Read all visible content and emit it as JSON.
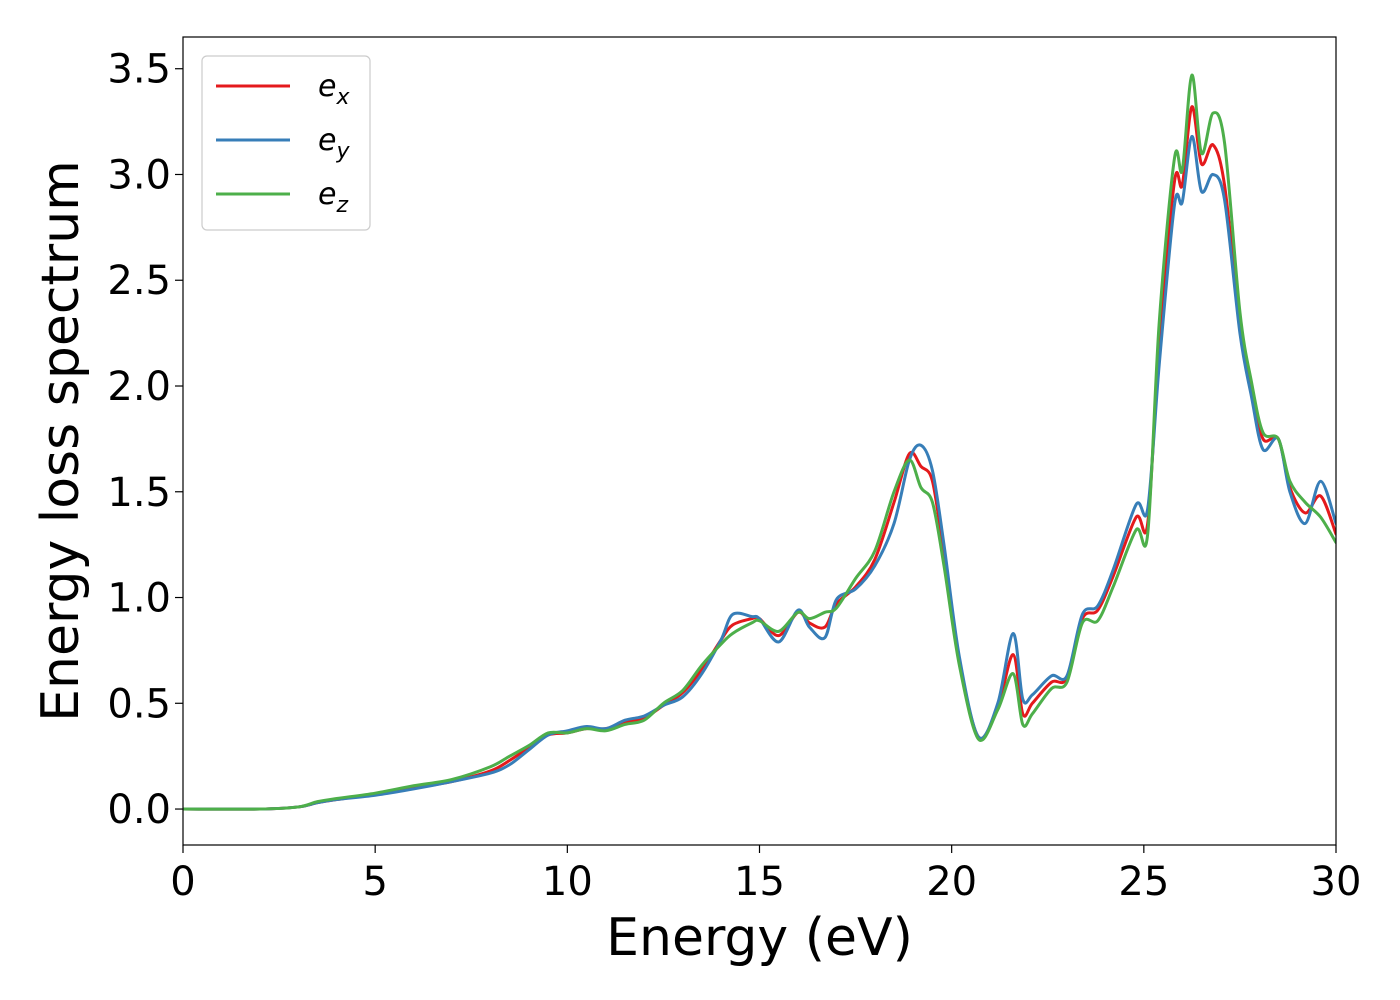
{
  "chart_data": {
    "type": "line",
    "title": "",
    "xlabel": "Energy (eV)",
    "ylabel": "Energy loss spectrum",
    "xlim": [
      0,
      30
    ],
    "ylim": [
      -0.17,
      3.65
    ],
    "xticks": [
      0,
      5,
      10,
      15,
      20,
      25,
      30
    ],
    "yticks": [
      0.0,
      0.5,
      1.0,
      1.5,
      2.0,
      2.5,
      3.0,
      3.5
    ],
    "xtick_labels": [
      "0",
      "5",
      "10",
      "15",
      "20",
      "25",
      "30"
    ],
    "ytick_labels": [
      "0.0",
      "0.5",
      "1.0",
      "1.5",
      "2.0",
      "2.5",
      "3.0",
      "3.5"
    ],
    "grid": false,
    "legend_position": "top-left",
    "series": [
      {
        "name": "e_x",
        "legend_base": "e",
        "legend_sub": "x",
        "color": "#e41a1c",
        "x": [
          0,
          2,
          3,
          3.5,
          4,
          5,
          6,
          7,
          8,
          8.5,
          9,
          9.5,
          10,
          10.5,
          11,
          11.5,
          12,
          12.5,
          13,
          13.5,
          14,
          14.3,
          14.8,
          15,
          15.5,
          16,
          16.3,
          16.7,
          17,
          17.5,
          18,
          18.5,
          18.9,
          19.2,
          19.5,
          19.8,
          20.2,
          20.7,
          21.2,
          21.6,
          21.85,
          22.1,
          22.6,
          23,
          23.4,
          23.8,
          24.2,
          24.8,
          25.1,
          25.4,
          25.8,
          26.0,
          26.25,
          26.5,
          26.8,
          27.1,
          27.5,
          27.8,
          28.1,
          28.5,
          28.8,
          29.2,
          29.6,
          30
        ],
        "values": [
          0.0,
          0.0,
          0.01,
          0.03,
          0.045,
          0.07,
          0.1,
          0.13,
          0.18,
          0.23,
          0.29,
          0.35,
          0.36,
          0.38,
          0.38,
          0.41,
          0.43,
          0.49,
          0.55,
          0.66,
          0.8,
          0.87,
          0.9,
          0.9,
          0.82,
          0.93,
          0.88,
          0.86,
          0.97,
          1.05,
          1.18,
          1.45,
          1.68,
          1.62,
          1.55,
          1.2,
          0.7,
          0.34,
          0.48,
          0.73,
          0.45,
          0.5,
          0.6,
          0.62,
          0.9,
          0.94,
          1.1,
          1.38,
          1.35,
          2.2,
          2.97,
          2.95,
          3.32,
          3.05,
          3.14,
          2.95,
          2.3,
          1.99,
          1.75,
          1.75,
          1.52,
          1.4,
          1.48,
          1.3
        ]
      },
      {
        "name": "e_y",
        "legend_base": "e",
        "legend_sub": "y",
        "color": "#377eb8",
        "x": [
          0,
          2,
          3,
          3.5,
          4,
          5,
          6,
          7,
          8,
          8.5,
          9,
          9.5,
          10,
          10.5,
          11,
          11.5,
          12,
          12.5,
          13,
          13.5,
          14,
          14.3,
          14.8,
          15,
          15.5,
          16,
          16.3,
          16.7,
          17,
          17.5,
          18,
          18.5,
          18.9,
          19.2,
          19.5,
          19.8,
          20.2,
          20.7,
          21.2,
          21.6,
          21.85,
          22.1,
          22.6,
          23,
          23.4,
          23.8,
          24.2,
          24.8,
          25.1,
          25.4,
          25.8,
          26.0,
          26.25,
          26.5,
          26.8,
          27.1,
          27.5,
          27.8,
          28.1,
          28.5,
          28.8,
          29.2,
          29.6,
          30
        ],
        "values": [
          0.0,
          0.0,
          0.01,
          0.03,
          0.045,
          0.065,
          0.095,
          0.13,
          0.17,
          0.21,
          0.28,
          0.35,
          0.37,
          0.39,
          0.38,
          0.42,
          0.44,
          0.49,
          0.53,
          0.64,
          0.8,
          0.92,
          0.91,
          0.9,
          0.79,
          0.94,
          0.86,
          0.81,
          0.99,
          1.04,
          1.15,
          1.35,
          1.65,
          1.72,
          1.6,
          1.25,
          0.72,
          0.34,
          0.5,
          0.83,
          0.52,
          0.54,
          0.63,
          0.63,
          0.92,
          0.96,
          1.13,
          1.44,
          1.42,
          2.1,
          2.86,
          2.87,
          3.18,
          2.92,
          3.0,
          2.88,
          2.25,
          1.95,
          1.7,
          1.75,
          1.5,
          1.35,
          1.55,
          1.35
        ]
      },
      {
        "name": "e_z",
        "legend_base": "e",
        "legend_sub": "z",
        "color": "#4daf4a",
        "x": [
          0,
          2,
          3,
          3.5,
          4,
          5,
          6,
          7,
          8,
          8.5,
          9,
          9.5,
          10,
          10.5,
          11,
          11.5,
          12,
          12.5,
          13,
          13.5,
          14,
          14.3,
          14.8,
          15,
          15.5,
          16,
          16.3,
          16.7,
          17,
          17.5,
          18,
          18.5,
          18.9,
          19.2,
          19.5,
          19.8,
          20.2,
          20.7,
          21.2,
          21.6,
          21.85,
          22.1,
          22.6,
          23,
          23.4,
          23.8,
          24.2,
          24.8,
          25.1,
          25.4,
          25.8,
          26.0,
          26.25,
          26.5,
          26.8,
          27.1,
          27.5,
          27.8,
          28.1,
          28.5,
          28.8,
          29.2,
          29.6,
          30
        ],
        "values": [
          0.0,
          0.0,
          0.01,
          0.035,
          0.05,
          0.075,
          0.11,
          0.14,
          0.2,
          0.25,
          0.3,
          0.36,
          0.36,
          0.38,
          0.37,
          0.4,
          0.42,
          0.5,
          0.56,
          0.68,
          0.78,
          0.83,
          0.88,
          0.89,
          0.84,
          0.93,
          0.9,
          0.93,
          0.95,
          1.09,
          1.22,
          1.5,
          1.65,
          1.52,
          1.45,
          1.15,
          0.68,
          0.33,
          0.47,
          0.64,
          0.4,
          0.45,
          0.57,
          0.6,
          0.88,
          0.89,
          1.05,
          1.32,
          1.3,
          2.3,
          3.08,
          3.02,
          3.47,
          3.1,
          3.29,
          3.15,
          2.35,
          2.02,
          1.78,
          1.75,
          1.55,
          1.45,
          1.38,
          1.26
        ]
      }
    ]
  }
}
